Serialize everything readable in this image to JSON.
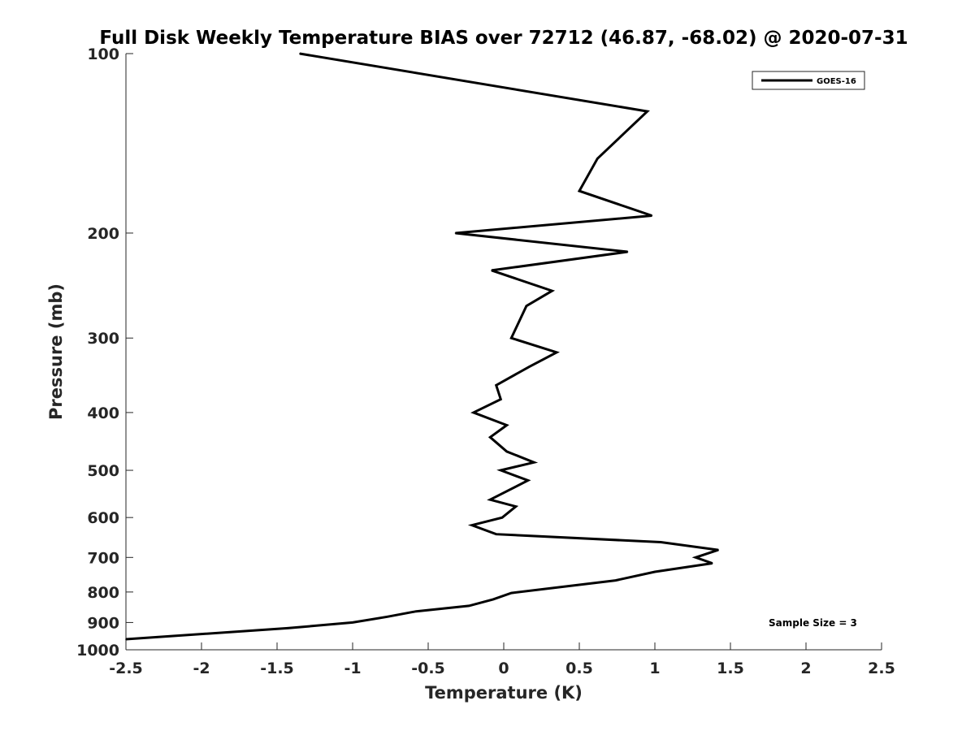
{
  "chart_data": {
    "type": "line",
    "title": "Full Disk Weekly Temperature BIAS over 72712 (46.87, -68.02) @ 2020-07-31",
    "xlabel": "Temperature (K)",
    "ylabel": "Pressure (mb)",
    "xlim": [
      -2.5,
      2.5
    ],
    "ylim": [
      1000,
      100
    ],
    "y_scale": "log",
    "y_reversed": true,
    "x_ticks": [
      "-2.5",
      "-2",
      "-1.5",
      "-1",
      "-0.5",
      "0",
      "0.5",
      "1",
      "1.5",
      "2",
      "2.5"
    ],
    "y_ticks": [
      "100",
      "200",
      "300",
      "400",
      "500",
      "600",
      "700",
      "800",
      "900",
      "1000"
    ],
    "grid": false,
    "legend_position": "top-right",
    "series": [
      {
        "name": "GOES-16",
        "color": "#000000",
        "points": [
          {
            "x": -1.35,
            "y": 100
          },
          {
            "x": 0.95,
            "y": 125
          },
          {
            "x": 0.62,
            "y": 150
          },
          {
            "x": 0.5,
            "y": 170
          },
          {
            "x": 0.98,
            "y": 187
          },
          {
            "x": -0.32,
            "y": 200
          },
          {
            "x": 0.82,
            "y": 215
          },
          {
            "x": -0.08,
            "y": 231
          },
          {
            "x": 0.32,
            "y": 250
          },
          {
            "x": 0.15,
            "y": 265
          },
          {
            "x": 0.05,
            "y": 300
          },
          {
            "x": 0.35,
            "y": 317
          },
          {
            "x": 0.17,
            "y": 335
          },
          {
            "x": -0.05,
            "y": 360
          },
          {
            "x": -0.02,
            "y": 380
          },
          {
            "x": -0.2,
            "y": 400
          },
          {
            "x": 0.02,
            "y": 420
          },
          {
            "x": -0.09,
            "y": 440
          },
          {
            "x": 0.02,
            "y": 465
          },
          {
            "x": 0.2,
            "y": 485
          },
          {
            "x": -0.02,
            "y": 500
          },
          {
            "x": 0.16,
            "y": 520
          },
          {
            "x": -0.09,
            "y": 560
          },
          {
            "x": 0.08,
            "y": 575
          },
          {
            "x": -0.01,
            "y": 600
          },
          {
            "x": -0.21,
            "y": 618
          },
          {
            "x": -0.05,
            "y": 640
          },
          {
            "x": 1.04,
            "y": 660
          },
          {
            "x": 1.42,
            "y": 680
          },
          {
            "x": 1.27,
            "y": 700
          },
          {
            "x": 1.38,
            "y": 716
          },
          {
            "x": 1.0,
            "y": 740
          },
          {
            "x": 0.74,
            "y": 765
          },
          {
            "x": 0.05,
            "y": 803
          },
          {
            "x": -0.07,
            "y": 823
          },
          {
            "x": -0.23,
            "y": 844
          },
          {
            "x": -0.58,
            "y": 862
          },
          {
            "x": -0.77,
            "y": 880
          },
          {
            "x": -1.0,
            "y": 900
          },
          {
            "x": -1.43,
            "y": 920
          },
          {
            "x": -2.5,
            "y": 960
          }
        ]
      }
    ],
    "annotation": "Sample Size = 3"
  }
}
